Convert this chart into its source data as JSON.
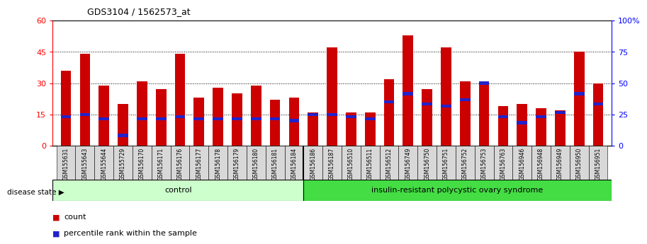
{
  "title": "GDS3104 / 1562573_at",
  "samples": [
    "GSM155631",
    "GSM155643",
    "GSM155644",
    "GSM155729",
    "GSM156170",
    "GSM156171",
    "GSM156176",
    "GSM156177",
    "GSM156178",
    "GSM156179",
    "GSM156180",
    "GSM156181",
    "GSM156184",
    "GSM156186",
    "GSM156187",
    "GSM156510",
    "GSM156511",
    "GSM156512",
    "GSM156749",
    "GSM156750",
    "GSM156751",
    "GSM156752",
    "GSM156753",
    "GSM156763",
    "GSM156946",
    "GSM156948",
    "GSM156949",
    "GSM156950",
    "GSM156951"
  ],
  "counts": [
    36,
    44,
    29,
    20,
    31,
    27,
    44,
    23,
    28,
    25,
    29,
    22,
    23,
    16,
    47,
    16,
    16,
    32,
    53,
    27,
    47,
    31,
    30,
    19,
    20,
    18,
    17,
    45,
    30
  ],
  "percentile_ranks": [
    14,
    15,
    13,
    5,
    13,
    13,
    14,
    13,
    13,
    13,
    13,
    13,
    12,
    15,
    15,
    14,
    13,
    21,
    25,
    20,
    19,
    22,
    30,
    14,
    11,
    14,
    16,
    25,
    20
  ],
  "n_control": 13,
  "n_disease": 16,
  "bar_color": "#cc0000",
  "percentile_color": "#2222cc",
  "control_label": "control",
  "disease_label": "insulin-resistant polycystic ovary syndrome",
  "disease_state_label": "disease state",
  "control_bg": "#ccffcc",
  "disease_bg": "#44dd44",
  "ylim_left": [
    0,
    60
  ],
  "ylim_right": [
    0,
    100
  ],
  "yticks_left": [
    0,
    15,
    30,
    45,
    60
  ],
  "yticks_right": [
    0,
    25,
    50,
    75,
    100
  ],
  "ytick_labels_right": [
    "0",
    "25",
    "50",
    "75",
    "100%"
  ],
  "bar_width": 0.55,
  "legend_count_label": "count",
  "legend_percentile_label": "percentile rank within the sample"
}
